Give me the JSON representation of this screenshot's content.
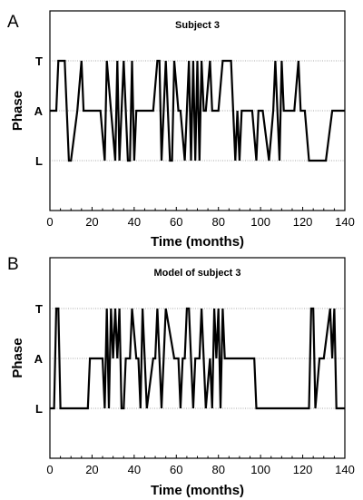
{
  "chart_data": [
    {
      "type": "line",
      "panel_letter": "A",
      "title": "Subject  3",
      "xlabel": "Time (months)",
      "ylabel": "Phase",
      "xlim": [
        0,
        140
      ],
      "x_ticks": [
        "0",
        "20",
        "40",
        "60",
        "80",
        "100",
        "120",
        "140"
      ],
      "y_categories": [
        "L",
        "A",
        "T"
      ],
      "grid_lines_at": [
        "T",
        "A",
        "L"
      ],
      "series": [
        {
          "x": [
            0,
            3,
            4,
            7,
            9,
            10,
            13,
            15,
            16,
            24,
            26,
            27,
            31,
            32,
            33,
            35,
            37,
            38,
            39,
            40,
            41,
            49,
            51,
            52,
            53,
            55,
            57,
            58,
            59,
            61,
            62,
            64,
            66,
            67,
            68,
            69,
            70,
            71,
            72,
            73,
            74,
            76,
            77,
            80,
            82,
            86,
            88,
            89,
            90,
            91,
            96,
            98,
            99,
            101,
            104,
            106,
            107,
            109,
            110,
            111,
            116,
            118,
            119,
            121,
            123,
            131,
            134,
            140
          ],
          "y": [
            "A",
            "A",
            "T",
            "T",
            "L",
            "L",
            "A",
            "T",
            "A",
            "A",
            "L",
            "T",
            "L",
            "T",
            "L",
            "T",
            "L",
            "L",
            "T",
            "L",
            "A",
            "A",
            "T",
            "T",
            "L",
            "T",
            "L",
            "L",
            "T",
            "A",
            "A",
            "L",
            "T",
            "L",
            "T",
            "L",
            "T",
            "L",
            "T",
            "A",
            "A",
            "T",
            "A",
            "A",
            "T",
            "T",
            "L",
            "A",
            "L",
            "A",
            "A",
            "L",
            "A",
            "A",
            "L",
            "A",
            "T",
            "L",
            "T",
            "A",
            "A",
            "T",
            "A",
            "A",
            "L",
            "L",
            "A",
            "A"
          ]
        }
      ]
    },
    {
      "type": "line",
      "panel_letter": "B",
      "title": "Model of subject 3",
      "xlabel": "Time (months)",
      "ylabel": "Phase",
      "xlim": [
        0,
        140
      ],
      "x_ticks": [
        "0",
        "20",
        "40",
        "60",
        "80",
        "100",
        "120",
        "140"
      ],
      "y_categories": [
        "L",
        "A",
        "T"
      ],
      "grid_lines_at": [
        "T",
        "A",
        "L"
      ],
      "series": [
        {
          "x": [
            0,
            2,
            3,
            4,
            5,
            18,
            19,
            25,
            26,
            27,
            28,
            29,
            30,
            31,
            32,
            33,
            34,
            35,
            36,
            38,
            39,
            41,
            42,
            43,
            44,
            46,
            49,
            50,
            51,
            52,
            53,
            55,
            59,
            61,
            62,
            63,
            64,
            65,
            66,
            67,
            68,
            69,
            71,
            72,
            74,
            76,
            77,
            78,
            79,
            80,
            81,
            82,
            83,
            84,
            85,
            97,
            98,
            120,
            123,
            124,
            125,
            126,
            128,
            130,
            133,
            134,
            135,
            136,
            137,
            140
          ],
          "y": [
            "L",
            "L",
            "T",
            "T",
            "L",
            "L",
            "A",
            "A",
            "L",
            "T",
            "L",
            "T",
            "A",
            "T",
            "A",
            "T",
            "L",
            "L",
            "A",
            "A",
            "T",
            "A",
            "A",
            "L",
            "T",
            "L",
            "A",
            "A",
            "T",
            "A",
            "L",
            "T",
            "A",
            "A",
            "L",
            "A",
            "A",
            "T",
            "T",
            "A",
            "L",
            "A",
            "A",
            "T",
            "L",
            "A",
            "L",
            "T",
            "A",
            "T",
            "L",
            "T",
            "A",
            "A",
            "A",
            "A",
            "L",
            "L",
            "L",
            "T",
            "T",
            "L",
            "A",
            "A",
            "T",
            "A",
            "T",
            "L",
            "L",
            "L"
          ]
        }
      ]
    }
  ]
}
